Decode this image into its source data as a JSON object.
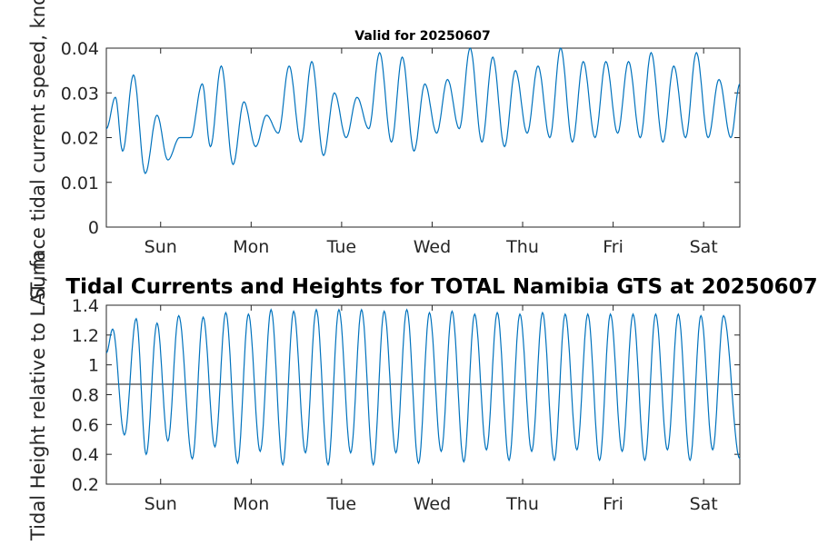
{
  "chart_data": [
    {
      "type": "line",
      "title": "Valid for 20250607",
      "ylabel": "Surface tidal current speed, knots",
      "xlabel": "",
      "ylim": [
        0,
        0.04
      ],
      "yticks": [
        "0",
        "0.01",
        "0.02",
        "0.03",
        "0.04"
      ],
      "xticks": [
        "Sun",
        "Mon",
        "Tue",
        "Wed",
        "Thu",
        "Fri",
        "Sat"
      ],
      "xlim_days": [
        -0.6,
        6.4
      ],
      "grid": false,
      "color": "#0072bd",
      "series": [
        {
          "x": [
            -0.6,
            -0.5,
            -0.42,
            -0.3,
            -0.17,
            -0.04,
            0.08,
            0.21,
            0.33,
            0.46,
            0.55,
            0.67,
            0.8,
            0.92,
            1.05,
            1.17,
            1.3,
            1.42,
            1.55,
            1.67,
            1.8,
            1.92,
            2.05,
            2.17,
            2.3,
            2.42,
            2.55,
            2.67,
            2.8,
            2.92,
            3.05,
            3.17,
            3.3,
            3.42,
            3.55,
            3.67,
            3.8,
            3.92,
            4.05,
            4.17,
            4.3,
            4.42,
            4.55,
            4.67,
            4.8,
            4.92,
            5.05,
            5.17,
            5.3,
            5.42,
            5.55,
            5.67,
            5.8,
            5.92,
            6.05,
            6.17,
            6.3,
            6.4
          ],
          "values": [
            0.022,
            0.029,
            0.017,
            0.034,
            0.012,
            0.025,
            0.015,
            0.02,
            0.02,
            0.032,
            0.018,
            0.036,
            0.014,
            0.028,
            0.018,
            0.025,
            0.021,
            0.036,
            0.019,
            0.037,
            0.016,
            0.03,
            0.02,
            0.029,
            0.022,
            0.039,
            0.019,
            0.038,
            0.017,
            0.032,
            0.021,
            0.033,
            0.022,
            0.04,
            0.019,
            0.038,
            0.018,
            0.035,
            0.021,
            0.036,
            0.02,
            0.04,
            0.019,
            0.037,
            0.02,
            0.037,
            0.021,
            0.037,
            0.02,
            0.039,
            0.019,
            0.036,
            0.02,
            0.039,
            0.02,
            0.033,
            0.02,
            0.032
          ]
        }
      ]
    },
    {
      "type": "line",
      "title": "Tidal Currents and Heights for TOTAL Namibia GTS at 20250607",
      "ylabel": "Tidal Height relative to LAT, m",
      "xlabel": "",
      "ylim": [
        0.2,
        1.4
      ],
      "yticks": [
        "0.2",
        "0.4",
        "0.6",
        "0.8",
        "1",
        "1.2",
        "1.4"
      ],
      "xticks": [
        "Sun",
        "Mon",
        "Tue",
        "Wed",
        "Thu",
        "Fri",
        "Sat"
      ],
      "xlim_days": [
        -0.6,
        6.4
      ],
      "grid": false,
      "color": "#0072bd",
      "reference_line": 0.87,
      "reference_color": "#404040",
      "series": [
        {
          "x": [
            -0.6,
            -0.53,
            -0.4,
            -0.27,
            -0.16,
            -0.04,
            0.08,
            0.2,
            0.35,
            0.47,
            0.6,
            0.72,
            0.85,
            0.97,
            1.1,
            1.22,
            1.35,
            1.47,
            1.6,
            1.72,
            1.85,
            1.97,
            2.1,
            2.22,
            2.35,
            2.47,
            2.6,
            2.72,
            2.85,
            2.97,
            3.1,
            3.22,
            3.35,
            3.47,
            3.6,
            3.72,
            3.85,
            3.97,
            4.1,
            4.22,
            4.35,
            4.47,
            4.6,
            4.72,
            4.85,
            4.97,
            5.1,
            5.22,
            5.35,
            5.47,
            5.6,
            5.72,
            5.85,
            5.97,
            6.1,
            6.22,
            6.4
          ],
          "values": [
            1.08,
            1.24,
            0.53,
            1.31,
            0.4,
            1.28,
            0.49,
            1.33,
            0.37,
            1.32,
            0.45,
            1.35,
            0.34,
            1.34,
            0.42,
            1.37,
            0.33,
            1.36,
            0.41,
            1.37,
            0.33,
            1.37,
            0.41,
            1.37,
            0.33,
            1.36,
            0.41,
            1.37,
            0.34,
            1.35,
            0.42,
            1.36,
            0.35,
            1.34,
            0.43,
            1.35,
            0.36,
            1.34,
            0.42,
            1.35,
            0.36,
            1.34,
            0.43,
            1.34,
            0.36,
            1.34,
            0.42,
            1.34,
            0.36,
            1.34,
            0.43,
            1.34,
            0.36,
            1.33,
            0.43,
            1.33,
            0.37
          ]
        }
      ]
    }
  ]
}
